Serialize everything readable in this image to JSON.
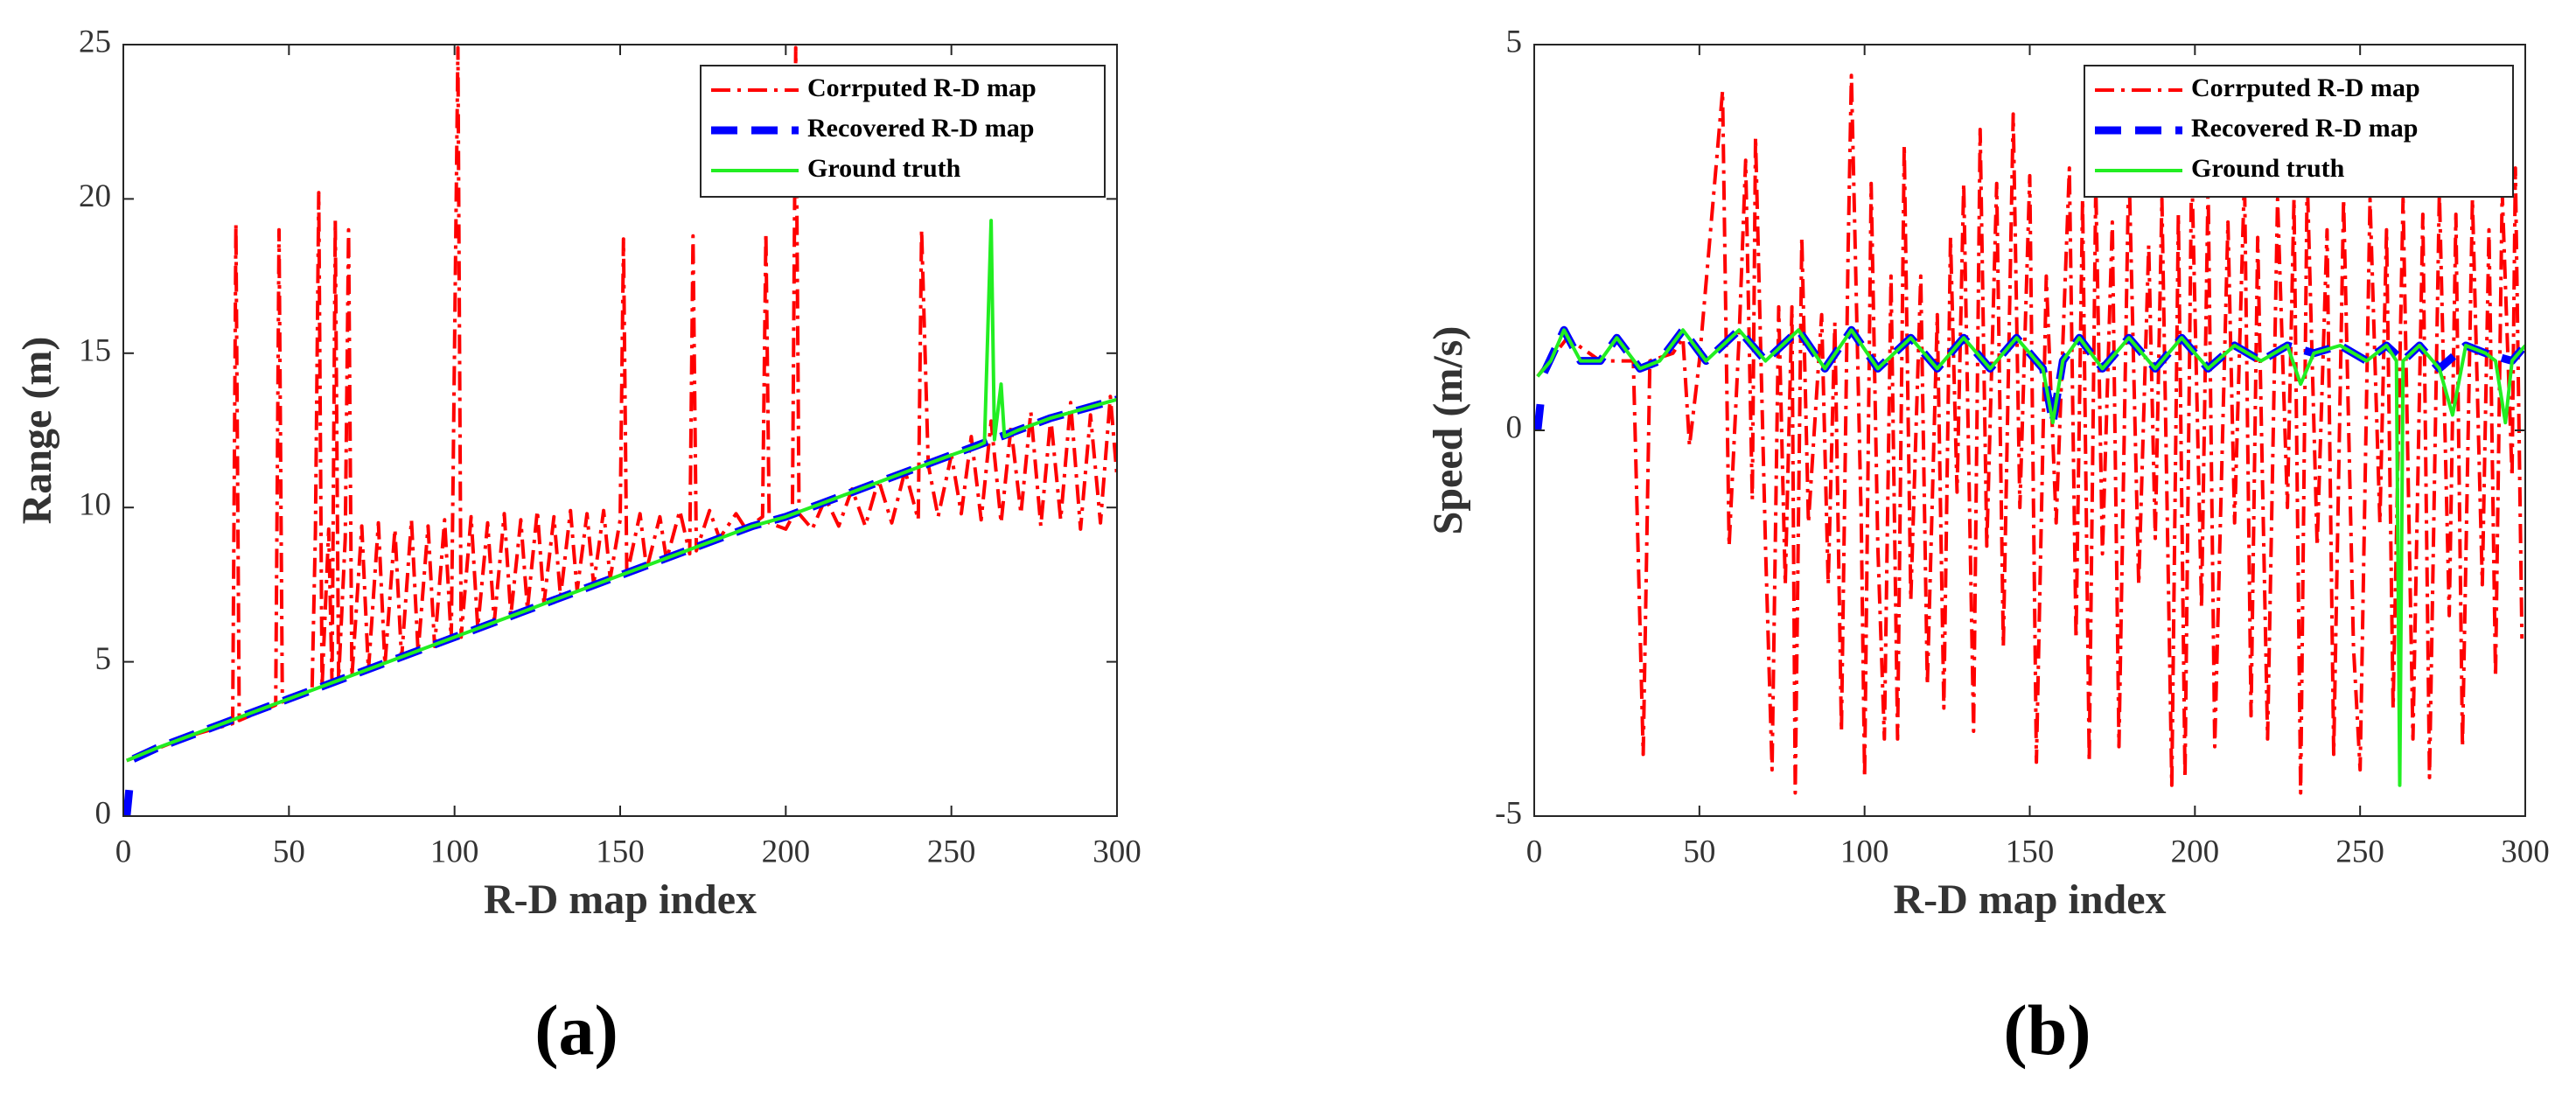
{
  "chart_data": [
    {
      "type": "line",
      "label": "(a)",
      "xlabel": "R-D map index",
      "ylabel": "Range (m)",
      "xlim": [
        0,
        300
      ],
      "ylim": [
        0,
        25
      ],
      "xticks": [
        0,
        50,
        100,
        150,
        200,
        250,
        300
      ],
      "yticks": [
        0,
        5,
        10,
        15,
        20,
        25
      ],
      "legend": "upper right",
      "series": [
        {
          "name": "Corrputed R-D map",
          "color": "#ff0000",
          "linestyle": "dashdot",
          "x": [
            1,
            20,
            33,
            34,
            35,
            46,
            47,
            48,
            57,
            58,
            59,
            60,
            62,
            63,
            64,
            65,
            67,
            68,
            69,
            72,
            74,
            77,
            79,
            82,
            84,
            87,
            89,
            92,
            94,
            97,
            99,
            101,
            102,
            105,
            107,
            110,
            112,
            115,
            117,
            120,
            122,
            125,
            127,
            130,
            132,
            135,
            137,
            140,
            142,
            145,
            147,
            150,
            151,
            152,
            156,
            158,
            162,
            164,
            168,
            171,
            172,
            173,
            177,
            180,
            185,
            188,
            193,
            194,
            195,
            200,
            202,
            203,
            204,
            208,
            212,
            216,
            220,
            224,
            228,
            232,
            236,
            240,
            241,
            243,
            246,
            250,
            253,
            256,
            259,
            262,
            265,
            268,
            271,
            274,
            277,
            280,
            283,
            286,
            289,
            292,
            295,
            298,
            300
          ],
          "values": [
            1.8,
            2.6,
            3.0,
            19.2,
            3.1,
            3.6,
            19.0,
            3.7,
            4.1,
            9.2,
            20.2,
            4.2,
            9.3,
            4.3,
            19.3,
            4.4,
            9.0,
            19.0,
            4.5,
            9.4,
            4.7,
            9.5,
            4.9,
            9.3,
            5.1,
            9.6,
            5.3,
            9.4,
            5.5,
            9.6,
            5.7,
            24.9,
            5.8,
            9.7,
            6.1,
            9.5,
            6.3,
            9.8,
            6.5,
            9.6,
            6.7,
            9.9,
            6.9,
            9.7,
            7.1,
            9.9,
            7.3,
            9.8,
            7.5,
            9.9,
            7.7,
            9.6,
            18.7,
            7.8,
            9.8,
            8.0,
            9.7,
            8.3,
            9.9,
            8.5,
            18.8,
            8.6,
            9.9,
            9.0,
            9.8,
            9.3,
            9.7,
            18.9,
            9.5,
            9.3,
            9.7,
            24.9,
            9.8,
            9.3,
            10.3,
            9.4,
            10.6,
            9.4,
            10.9,
            9.5,
            11.2,
            9.6,
            19.0,
            11.4,
            9.7,
            11.7,
            9.8,
            12.3,
            9.6,
            12.8,
            9.5,
            12.6,
            9.8,
            13.1,
            9.4,
            12.9,
            9.6,
            13.4,
            9.3,
            13.0,
            9.5,
            13.6,
            11.0
          ]
        },
        {
          "name": "Recovered R-D map",
          "color": "#0000ff",
          "linestyle": "dashed",
          "x": [
            1,
            2,
            2.5,
            3,
            10,
            20,
            30,
            40,
            50,
            60,
            70,
            80,
            90,
            100,
            110,
            120,
            130,
            140,
            150,
            160,
            170,
            180,
            190,
            200,
            210,
            220,
            230,
            240,
            250,
            260,
            270,
            280,
            290,
            300
          ],
          "values": [
            0,
            1.1,
            null,
            1.85,
            2.2,
            2.6,
            3.0,
            3.4,
            3.8,
            4.2,
            4.6,
            5.0,
            5.4,
            5.8,
            6.2,
            6.6,
            7.0,
            7.4,
            7.8,
            8.2,
            8.6,
            9.0,
            9.4,
            9.7,
            10.1,
            10.5,
            10.9,
            11.3,
            11.7,
            12.1,
            12.5,
            12.9,
            13.2,
            13.5
          ]
        },
        {
          "name": "Ground truth",
          "color": "#22ee22",
          "linestyle": "solid",
          "x": [
            1,
            10,
            20,
            30,
            40,
            50,
            60,
            70,
            80,
            90,
            100,
            110,
            120,
            130,
            140,
            150,
            160,
            170,
            180,
            190,
            200,
            210,
            220,
            230,
            240,
            250,
            258,
            260,
            262,
            263,
            265,
            266,
            270,
            280,
            290,
            300
          ],
          "values": [
            1.8,
            2.2,
            2.6,
            3.0,
            3.4,
            3.8,
            4.2,
            4.6,
            5.0,
            5.4,
            5.8,
            6.2,
            6.6,
            7.0,
            7.4,
            7.8,
            8.2,
            8.6,
            9.0,
            9.4,
            9.7,
            10.1,
            10.5,
            10.9,
            11.3,
            11.7,
            12.0,
            12.1,
            19.3,
            12.2,
            14.0,
            12.3,
            12.5,
            12.9,
            13.2,
            13.5
          ]
        }
      ]
    },
    {
      "type": "line",
      "label": "(b)",
      "xlabel": "R-D map index",
      "ylabel": "Speed (m/s)",
      "xlim": [
        0,
        300
      ],
      "ylim": [
        -5,
        5
      ],
      "xticks": [
        0,
        50,
        100,
        150,
        200,
        250,
        300
      ],
      "yticks": [
        -5,
        0,
        5
      ],
      "legend": "upper right",
      "series": [
        {
          "name": "Corrputed R-D map",
          "color": "#ff0000",
          "linestyle": "dashdot",
          "x": [
            1,
            10,
            20,
            30,
            33,
            35,
            42,
            45,
            47,
            50,
            57,
            59,
            62,
            64,
            66,
            67,
            70,
            72,
            74,
            76,
            78,
            79,
            81,
            83,
            87,
            89,
            91,
            93,
            95,
            96,
            99,
            100,
            102,
            104,
            106,
            108,
            110,
            112,
            114,
            117,
            119,
            122,
            124,
            126,
            128,
            130,
            133,
            135,
            137,
            140,
            142,
            145,
            147,
            150,
            152,
            155,
            158,
            162,
            164,
            166,
            168,
            170,
            172,
            175,
            177,
            180,
            183,
            186,
            188,
            190,
            193,
            195,
            197,
            199,
            202,
            204,
            206,
            210,
            212,
            215,
            217,
            219,
            222,
            225,
            228,
            230,
            232,
            234,
            237,
            240,
            242,
            245,
            248,
            250,
            253,
            256,
            258,
            260,
            263,
            266,
            269,
            271,
            274,
            277,
            279,
            281,
            284,
            287,
            289,
            291,
            293,
            296,
            297,
            299
          ],
          "values": [
            0.7,
            1.2,
            0.9,
            0.9,
            -4.2,
            0.9,
            1.0,
            1.2,
            -0.2,
            0.9,
            4.4,
            -1.5,
            1.2,
            3.5,
            -0.9,
            3.8,
            -1.5,
            -4.4,
            1.6,
            -2.0,
            1.6,
            -4.7,
            2.5,
            -1.2,
            1.5,
            -2.0,
            1.4,
            -3.9,
            2.3,
            4.6,
            -1.2,
            -4.5,
            3.2,
            -1.5,
            -4.0,
            2.0,
            -4.0,
            3.7,
            -2.2,
            2.0,
            -3.3,
            1.5,
            -3.6,
            2.5,
            -0.8,
            3.2,
            -3.9,
            3.9,
            -1.5,
            3.2,
            -2.8,
            4.1,
            -1.0,
            3.3,
            -4.3,
            2.0,
            -1.2,
            3.4,
            -2.7,
            3.0,
            -4.3,
            3.2,
            -1.6,
            2.7,
            -4.1,
            3.5,
            -2.0,
            2.4,
            -1.4,
            3.0,
            -4.6,
            2.8,
            -4.5,
            3.5,
            -2.3,
            3.2,
            -4.1,
            2.7,
            -1.2,
            3.3,
            -3.7,
            2.5,
            -4.0,
            3.0,
            -1.0,
            3.0,
            -4.7,
            3.3,
            -1.5,
            2.6,
            -4.2,
            3.0,
            -2.8,
            -4.4,
            3.0,
            -1.2,
            2.6,
            -3.6,
            3.0,
            -4.0,
            2.8,
            -4.5,
            3.1,
            -2.4,
            2.8,
            -4.1,
            3.0,
            -2.0,
            2.6,
            -3.2,
            3.1,
            -0.6,
            3.4,
            -2.7
          ]
        },
        {
          "name": "Recovered R-D map",
          "color": "#0000ff",
          "linestyle": "dashed",
          "x": [
            1,
            2,
            2.5,
            3,
            9,
            14,
            20,
            25,
            32,
            38,
            45,
            52,
            62,
            70,
            80,
            88,
            96,
            104,
            114,
            122,
            130,
            138,
            146,
            154,
            157,
            160,
            165,
            172,
            180,
            188,
            196,
            204,
            212,
            220,
            228,
            236,
            244,
            252,
            258,
            263,
            268,
            274,
            282,
            288,
            296,
            300
          ],
          "values": [
            0,
            0.4,
            null,
            0.75,
            1.3,
            0.9,
            0.9,
            1.2,
            0.8,
            0.9,
            1.3,
            0.9,
            1.3,
            0.9,
            1.3,
            0.8,
            1.3,
            0.8,
            1.2,
            0.8,
            1.2,
            0.8,
            1.2,
            0.8,
            0.1,
            0.9,
            1.2,
            0.8,
            1.2,
            0.8,
            1.2,
            0.8,
            1.1,
            0.9,
            1.1,
            1.0,
            1.1,
            0.9,
            1.1,
            0.9,
            1.1,
            0.8,
            1.1,
            1.0,
            0.9,
            1.1
          ]
        },
        {
          "name": "Ground truth",
          "color": "#22ee22",
          "linestyle": "solid",
          "x": [
            1,
            5,
            9,
            14,
            20,
            25,
            32,
            38,
            45,
            52,
            62,
            70,
            80,
            88,
            96,
            104,
            114,
            122,
            130,
            138,
            146,
            154,
            157,
            160,
            165,
            172,
            180,
            188,
            196,
            204,
            212,
            220,
            228,
            232,
            236,
            244,
            252,
            258,
            261,
            262,
            263,
            268,
            274,
            278,
            282,
            288,
            291,
            294,
            296,
            300
          ],
          "values": [
            0.7,
            0.9,
            1.3,
            0.9,
            0.9,
            1.2,
            0.8,
            0.9,
            1.3,
            0.9,
            1.3,
            0.9,
            1.3,
            0.8,
            1.3,
            0.8,
            1.2,
            0.8,
            1.2,
            0.8,
            1.2,
            0.8,
            0.1,
            0.9,
            1.2,
            0.8,
            1.2,
            0.8,
            1.2,
            0.8,
            1.1,
            0.9,
            1.1,
            0.6,
            1.0,
            1.1,
            0.9,
            1.1,
            0.9,
            -4.6,
            0.9,
            1.1,
            0.8,
            0.2,
            1.1,
            1.0,
            0.9,
            0.1,
            0.9,
            1.1
          ]
        }
      ]
    }
  ]
}
